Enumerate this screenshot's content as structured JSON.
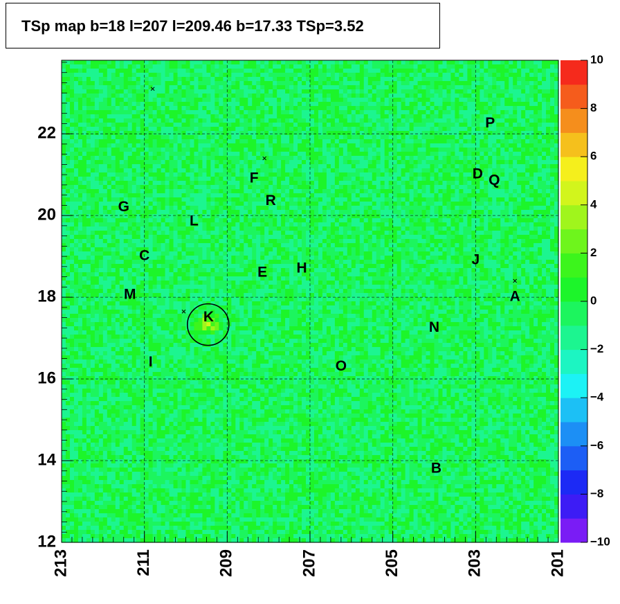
{
  "title": "TSp map b=18 l=207 l=209.46 b=17.33 TSp=3.52",
  "chart_data": {
    "type": "heatmap",
    "title": "TSp map b=18 l=207 l=209.46 b=17.33 TSp=3.52",
    "xlabel": "",
    "ylabel": "",
    "xlim": [
      213,
      201
    ],
    "ylim": [
      12,
      23.8
    ],
    "x_ticks": [
      "213",
      "211",
      "209",
      "207",
      "205",
      "203",
      "201"
    ],
    "y_ticks": [
      "12",
      "14",
      "16",
      "18",
      "20",
      "22"
    ],
    "colorbar": {
      "range": [
        -10,
        10
      ],
      "ticks": [
        "10",
        "8",
        "6",
        "4",
        "2",
        "0",
        "−2",
        "−4",
        "−6",
        "−8",
        "−10"
      ],
      "colors": [
        "#7a1cf5",
        "#3d1cf5",
        "#1c2af5",
        "#1c5ef5",
        "#1c8ff5",
        "#1cc0f5",
        "#1cf2f5",
        "#1cf5c2",
        "#1cf590",
        "#1cf55e",
        "#1cf52a",
        "#3cf51c",
        "#6ef51c",
        "#a0f51c",
        "#d2f51c",
        "#f5ef1c",
        "#f5c01c",
        "#f58e1c",
        "#f55c1c",
        "#f52a1c"
      ]
    },
    "background_value_range": [
      -2,
      1
    ],
    "peak": {
      "l": 209.46,
      "b": 17.33,
      "value": 3.52,
      "marker": "circle"
    },
    "labels": [
      {
        "text": "A",
        "l": 202.05,
        "b": 18.0
      },
      {
        "text": "B",
        "l": 203.95,
        "b": 13.8
      },
      {
        "text": "C",
        "l": 211.0,
        "b": 19.0
      },
      {
        "text": "D",
        "l": 202.95,
        "b": 21.0
      },
      {
        "text": "E",
        "l": 208.15,
        "b": 18.6
      },
      {
        "text": "F",
        "l": 208.35,
        "b": 20.9
      },
      {
        "text": "G",
        "l": 211.5,
        "b": 20.2
      },
      {
        "text": "H",
        "l": 207.2,
        "b": 18.7
      },
      {
        "text": "I",
        "l": 210.85,
        "b": 16.4
      },
      {
        "text": "J",
        "l": 203.0,
        "b": 18.9
      },
      {
        "text": "K",
        "l": 209.45,
        "b": 17.5
      },
      {
        "text": "L",
        "l": 209.8,
        "b": 19.85
      },
      {
        "text": "M",
        "l": 211.35,
        "b": 18.05
      },
      {
        "text": "N",
        "l": 204.0,
        "b": 17.25
      },
      {
        "text": "O",
        "l": 206.25,
        "b": 16.3
      },
      {
        "text": "P",
        "l": 202.65,
        "b": 22.25
      },
      {
        "text": "Q",
        "l": 202.55,
        "b": 20.85
      },
      {
        "text": "R",
        "l": 207.95,
        "b": 20.35
      }
    ],
    "cross_markers": [
      {
        "l": 210.8,
        "b": 23.1
      },
      {
        "l": 208.1,
        "b": 21.4
      },
      {
        "l": 210.05,
        "b": 17.65
      },
      {
        "l": 202.05,
        "b": 18.4
      }
    ],
    "grid": true
  }
}
